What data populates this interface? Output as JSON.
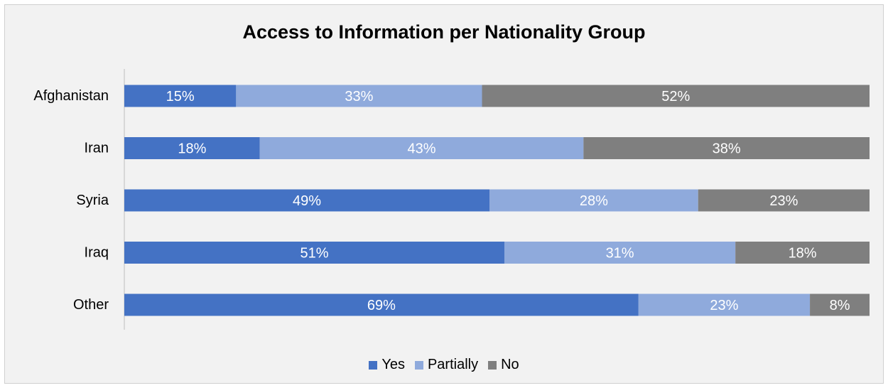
{
  "chart_data": {
    "type": "bar",
    "orientation": "horizontal",
    "stacked": "100%",
    "title": "Access to Information per Nationality Group",
    "categories": [
      "Afghanistan",
      "Iran",
      "Syria",
      "Iraq",
      "Other"
    ],
    "series": [
      {
        "name": "Yes",
        "color": "#4472c4",
        "values": [
          15,
          18,
          49,
          51,
          69
        ]
      },
      {
        "name": "Partially",
        "color": "#8faadc",
        "values": [
          33,
          43,
          28,
          31,
          23
        ]
      },
      {
        "name": "No",
        "color": "#7f7f7f",
        "values": [
          52,
          38,
          23,
          18,
          8
        ]
      }
    ],
    "value_suffix": "%",
    "data_label_color": "#ffffff",
    "legend_position": "bottom",
    "grid": false
  }
}
